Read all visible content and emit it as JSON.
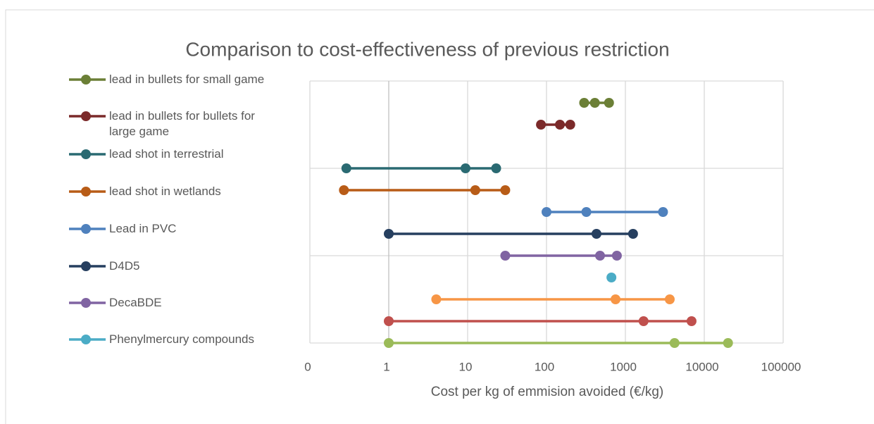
{
  "chart_data": {
    "type": "scatter",
    "title": "Comparison to cost-effectiveness of previous restriction",
    "x_label": "Cost per kg of emmision avoided (€/kg)",
    "x_scale": "log",
    "xlim": [
      0.1,
      100000
    ],
    "xticks": [
      {
        "value": 0.1,
        "label": "0"
      },
      1,
      10,
      100,
      1000,
      10000,
      100000
    ],
    "ylim": [
      0,
      12
    ],
    "yticks": [
      0,
      4,
      8,
      12
    ],
    "grid": true,
    "legend": "left",
    "series": [
      {
        "name": "lead in bullets for small game",
        "color": "#6b7f36",
        "x": [
          300,
          410,
          620
        ],
        "y": [
          11,
          11,
          11
        ]
      },
      {
        "name": "lead in bullets for bullets for large game",
        "color": "#7b2a2a",
        "x": [
          85,
          148,
          200
        ],
        "y": [
          10,
          10,
          10
        ]
      },
      {
        "name": "lead shot in terrestrial",
        "color": "#2a6a72",
        "x": [
          0.29,
          9.4,
          23
        ],
        "y": [
          8,
          8,
          8
        ]
      },
      {
        "name": "lead shot in wetlands",
        "color": "#b85c17",
        "x": [
          0.27,
          12.5,
          30
        ],
        "y": [
          7,
          7,
          7
        ]
      },
      {
        "name": "Lead in PVC",
        "color": "#4f81bd",
        "x": [
          100,
          320,
          3000
        ],
        "y": [
          6,
          6,
          6
        ]
      },
      {
        "name": "D4D5",
        "color": "#263f5f",
        "x": [
          1,
          430,
          1250
        ],
        "y": [
          5,
          5,
          5
        ]
      },
      {
        "name": "DecaBDE",
        "color": "#8064a2",
        "x": [
          30,
          477,
          780
        ],
        "y": [
          4,
          4,
          4
        ]
      },
      {
        "name": "Phenylmercury compounds",
        "color": "#4bacc6",
        "x": [
          665
        ],
        "y": [
          3
        ]
      },
      {
        "color": "#f79646",
        "x": [
          4,
          750,
          3650
        ],
        "y": [
          2,
          2,
          2
        ]
      },
      {
        "color": "#c0504d",
        "x": [
          1,
          1700,
          6900
        ],
        "y": [
          1,
          1,
          1
        ]
      },
      {
        "color": "#9bbb59",
        "x": [
          1,
          4200,
          20000
        ],
        "y": [
          0,
          0,
          0
        ]
      }
    ]
  }
}
